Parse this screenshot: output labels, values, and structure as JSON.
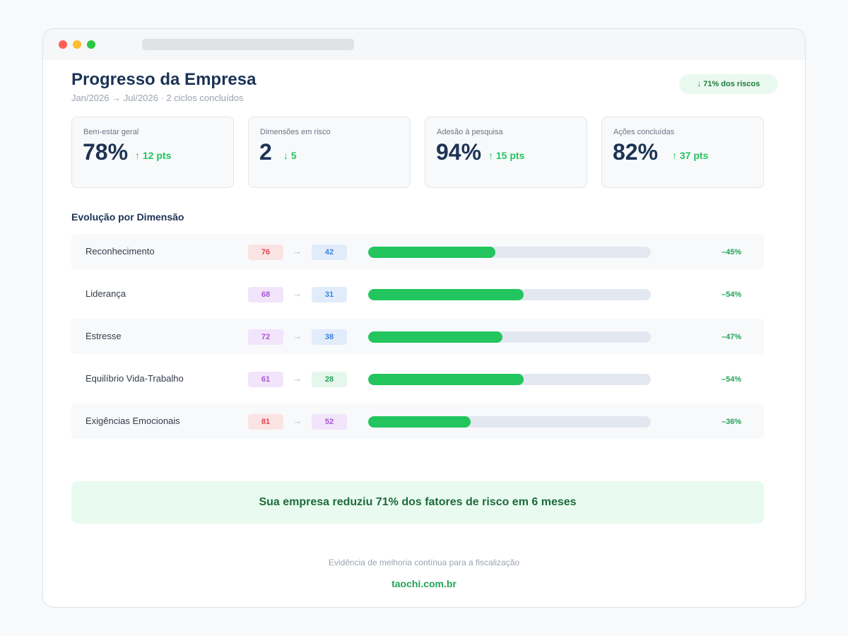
{
  "header": {
    "title": "Progresso da Empresa",
    "subtitle": "Jan/2026 → Jul/2026 · 2 ciclos concluídos",
    "risk_badge": "↓ 71% dos riscos"
  },
  "kpis": [
    {
      "label": "Bem-estar geral",
      "value": "78%",
      "delta": "↑ 12 pts"
    },
    {
      "label": "Dimensões em risco",
      "value": "2",
      "delta": "↓ 5"
    },
    {
      "label": "Adesão à pesquisa",
      "value": "94%",
      "delta": "↑ 15 pts"
    },
    {
      "label": "Ações concluídas",
      "value": "82%",
      "delta": "↑ 37 pts"
    }
  ],
  "section": {
    "title": "Evolução por Dimensão"
  },
  "dimensions": [
    {
      "name": "Reconhecimento",
      "from": "76",
      "to": "42",
      "arrow": "→",
      "change": "–45%",
      "progress": 0.45,
      "from_color": "red",
      "to_color": "blue"
    },
    {
      "name": "Liderança",
      "from": "68",
      "to": "31",
      "arrow": "→",
      "change": "–54%",
      "progress": 0.55,
      "from_color": "purple",
      "to_color": "blue"
    },
    {
      "name": "Estresse",
      "from": "72",
      "to": "38",
      "arrow": "→",
      "change": "–47%",
      "progress": 0.475,
      "from_color": "purple",
      "to_color": "blue"
    },
    {
      "name": "Equilíbrio Vida-Trabalho",
      "from": "61",
      "to": "28",
      "arrow": "→",
      "change": "–54%",
      "progress": 0.55,
      "from_color": "purple",
      "to_color": "green"
    },
    {
      "name": "Exigências Emocionais",
      "from": "81",
      "to": "52",
      "arrow": "→",
      "change": "–36%",
      "progress": 0.3625,
      "from_color": "red",
      "to_color": "purple"
    }
  ],
  "banner": {
    "text": "Sua empresa reduziu 71% dos fatores de risco em 6 meses"
  },
  "footer": {
    "note": "Evidência de melhoria contínua para a fiscalização",
    "link": "taochi.com.br"
  },
  "colors": {
    "accent": "#22c55e",
    "title": "#1c3354",
    "track": "#e3e8f0"
  }
}
